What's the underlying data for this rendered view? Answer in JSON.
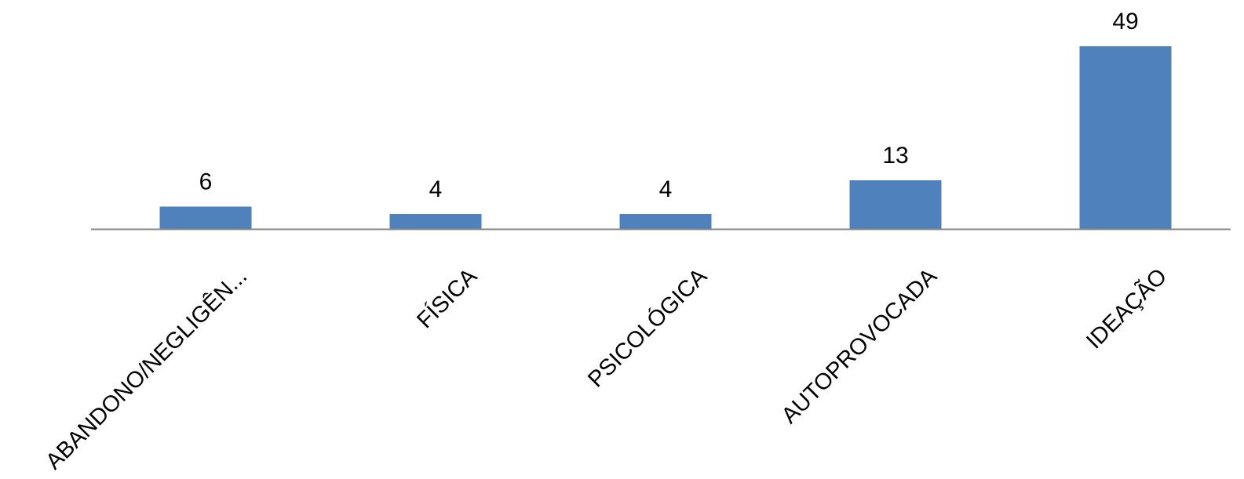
{
  "chart_data": {
    "type": "bar",
    "title": "",
    "xlabel": "",
    "ylabel": "",
    "categories": [
      "ABANDONO/NEGLIGÊN...",
      "FÍSICA",
      "PSICOLÓGICA",
      "AUTOPROVOCADA",
      "IDEAÇÃO"
    ],
    "values": [
      6,
      4,
      4,
      13,
      49
    ],
    "data_labels": [
      "6",
      "4",
      "4",
      "13",
      "49"
    ],
    "ylim": [
      0,
      49
    ],
    "grid": false,
    "legend": "none",
    "colors": {
      "bar": "#4F81BD",
      "axis": "#868686",
      "text": "#000000"
    }
  }
}
